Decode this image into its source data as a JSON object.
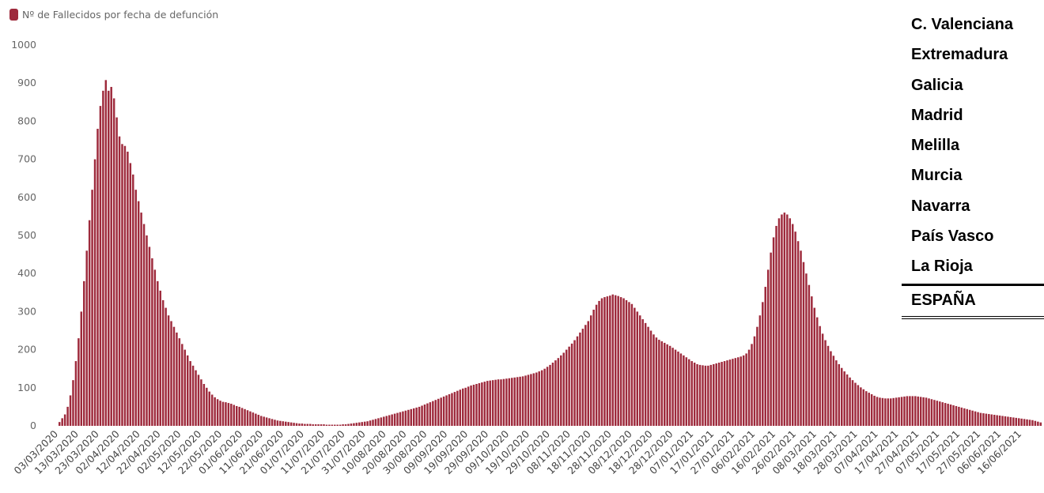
{
  "legend": {
    "label": "Nº de Fallecidos por fecha de defunción",
    "color": "#9e2a3c"
  },
  "regions": [
    "C. Valenciana",
    "Extremadura",
    "Galicia",
    "Madrid",
    "Melilla",
    "Murcia",
    "Navarra",
    "País Vasco",
    "La Rioja"
  ],
  "total_label": "ESPAÑA",
  "chart_data": {
    "type": "bar",
    "title": "",
    "xlabel": "",
    "ylabel": "",
    "ylim": [
      0,
      1000
    ],
    "y_ticks": [
      0,
      100,
      200,
      300,
      400,
      500,
      600,
      700,
      800,
      900,
      1000
    ],
    "grid": false,
    "bar_color": "#9e2a3c",
    "x_tick_labels": [
      "03/03/2020",
      "13/03/2020",
      "23/03/2020",
      "02/04/2020",
      "12/04/2020",
      "22/04/2020",
      "02/05/2020",
      "12/05/2020",
      "22/05/2020",
      "01/06/2020",
      "11/06/2020",
      "21/06/2020",
      "01/07/2020",
      "11/07/2020",
      "21/07/2020",
      "31/07/2020",
      "10/08/2020",
      "20/08/2020",
      "30/08/2020",
      "09/09/2020",
      "19/09/2020",
      "29/09/2020",
      "09/10/2020",
      "19/10/2020",
      "29/10/2020",
      "08/11/2020",
      "18/11/2020",
      "28/11/2020",
      "08/12/2020",
      "18/12/2020",
      "28/12/2020",
      "07/01/2021",
      "17/01/2021",
      "27/01/2021",
      "06/02/2021",
      "16/02/2021",
      "26/02/2021",
      "08/03/2021",
      "18/03/2021",
      "28/03/2021",
      "07/04/2021",
      "17/04/2021",
      "27/04/2021",
      "07/05/2021",
      "17/05/2021",
      "27/05/2021",
      "06/06/2021",
      "16/06/2021"
    ],
    "series": [
      {
        "values": [
          10,
          20,
          30,
          50,
          80,
          120,
          170,
          230,
          300,
          380,
          460,
          540,
          620,
          700,
          780,
          840,
          880,
          908,
          880,
          890,
          860,
          810,
          760,
          740,
          735,
          720,
          690,
          660,
          620,
          590,
          560,
          530,
          500,
          470,
          440,
          410,
          380,
          355,
          330,
          310,
          290,
          275,
          260,
          245,
          230,
          215,
          200,
          185,
          170,
          158,
          146,
          134,
          122,
          110,
          100,
          90,
          82,
          75,
          70,
          66,
          63,
          62,
          60,
          58,
          55,
          52,
          50,
          47,
          44,
          41,
          38,
          35,
          32,
          29,
          26,
          24,
          22,
          20,
          18,
          16,
          14,
          13,
          12,
          11,
          10,
          9,
          8,
          7,
          6,
          6,
          5,
          5,
          5,
          4,
          4,
          4,
          4,
          4,
          3,
          3,
          3,
          3,
          3,
          3,
          4,
          4,
          5,
          6,
          7,
          8,
          9,
          10,
          11,
          12,
          14,
          16,
          18,
          20,
          22,
          24,
          26,
          28,
          30,
          32,
          34,
          36,
          38,
          40,
          42,
          44,
          46,
          48,
          50,
          53,
          56,
          59,
          62,
          65,
          68,
          71,
          74,
          77,
          80,
          83,
          86,
          89,
          92,
          95,
          98,
          100,
          103,
          106,
          108,
          110,
          112,
          114,
          116,
          118,
          119,
          120,
          121,
          122,
          122,
          123,
          124,
          125,
          126,
          127,
          128,
          129,
          130,
          132,
          134,
          136,
          138,
          140,
          143,
          146,
          150,
          155,
          160,
          166,
          172,
          178,
          185,
          192,
          200,
          208,
          216,
          225,
          235,
          245,
          255,
          265,
          275,
          290,
          305,
          318,
          328,
          335,
          338,
          340,
          342,
          345,
          343,
          341,
          338,
          335,
          330,
          325,
          320,
          310,
          300,
          290,
          280,
          270,
          260,
          250,
          240,
          232,
          226,
          222,
          218,
          214,
          210,
          205,
          200,
          195,
          190,
          185,
          180,
          175,
          170,
          166,
          162,
          160,
          159,
          158,
          158,
          160,
          162,
          164,
          166,
          168,
          170,
          172,
          174,
          176,
          178,
          180,
          182,
          185,
          190,
          200,
          215,
          235,
          260,
          290,
          325,
          365,
          410,
          455,
          495,
          525,
          545,
          555,
          560,
          555,
          545,
          530,
          510,
          485,
          460,
          430,
          400,
          370,
          340,
          310,
          285,
          262,
          242,
          225,
          210,
          196,
          184,
          172,
          162,
          152,
          143,
          135,
          127,
          120,
          113,
          107,
          101,
          96,
          91,
          87,
          83,
          79,
          76,
          74,
          73,
          72,
          72,
          72,
          73,
          74,
          75,
          76,
          77,
          78,
          78,
          78,
          78,
          77,
          76,
          75,
          74,
          72,
          70,
          68,
          66,
          64,
          62,
          60,
          58,
          56,
          54,
          52,
          50,
          48,
          46,
          44,
          42,
          40,
          38,
          36,
          34,
          33,
          32,
          31,
          30,
          29,
          28,
          27,
          26,
          25,
          24,
          23,
          22,
          21,
          20,
          19,
          18,
          17,
          16,
          15,
          13,
          11,
          9
        ]
      }
    ]
  }
}
